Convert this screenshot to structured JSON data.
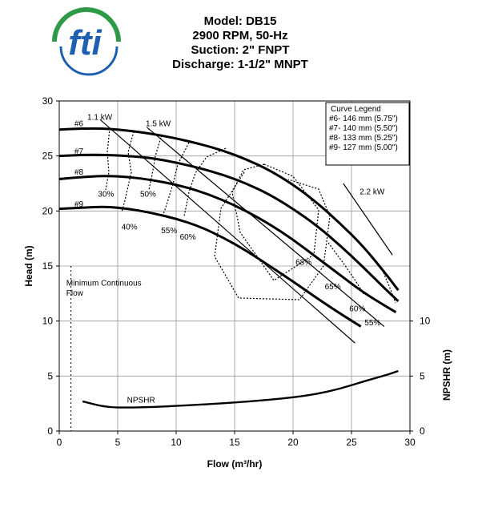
{
  "header": {
    "logo_text": "fti",
    "model": "Model: DB15",
    "speed": "2900 RPM, 50-Hz",
    "suction": "Suction: 2\" FNPT",
    "discharge": "Discharge: 1-1/2\" MNPT"
  },
  "colors": {
    "curve": "#000000",
    "grid": "#9a9a9a",
    "logo_blue": "#1f5fb0",
    "logo_green": "#2e9a48"
  },
  "chart_data": {
    "type": "line",
    "xlabel": "Flow (m³/hr)",
    "ylabel": "Head (m)",
    "y2label": "NPSHR (m)",
    "xlim": [
      0,
      30
    ],
    "ylim": [
      0,
      30
    ],
    "y2lim": [
      0,
      10
    ],
    "xticks": [
      "0",
      "5",
      "10",
      "15",
      "20",
      "25",
      "30"
    ],
    "yticks": [
      "0",
      "5",
      "10",
      "15",
      "20",
      "25",
      "30"
    ],
    "y2ticks": [
      "0",
      "5",
      "10"
    ],
    "grid": true,
    "legend": {
      "title": "Curve Legend",
      "entries": [
        "#6- 146 mm (5.75\")",
        "#7- 140 mm (5.50\")",
        "#8- 133 mm (5.25\")",
        "#9- 127 mm (5.00\")"
      ]
    },
    "series": [
      {
        "name": "#6",
        "x": [
          0,
          2,
          4,
          6,
          8,
          10,
          12,
          14,
          16,
          18,
          20,
          22,
          24,
          26,
          28,
          29
        ],
        "y": [
          27.4,
          27.5,
          27.5,
          27.3,
          27.0,
          26.6,
          26.1,
          25.5,
          24.7,
          23.7,
          22.4,
          20.8,
          18.9,
          16.8,
          14.2,
          12.8
        ]
      },
      {
        "name": "#7",
        "x": [
          0,
          2,
          4,
          6,
          8,
          10,
          12,
          14,
          16,
          18,
          20,
          22,
          24,
          26,
          28,
          29
        ],
        "y": [
          25.0,
          25.1,
          25.1,
          25.0,
          24.8,
          24.4,
          23.9,
          23.3,
          22.5,
          21.5,
          20.2,
          18.7,
          16.9,
          14.9,
          12.8,
          11.8
        ]
      },
      {
        "name": "#8",
        "x": [
          0,
          2,
          4,
          6,
          8,
          10,
          12,
          14,
          16,
          18,
          20,
          22,
          24,
          26,
          28,
          28.8
        ],
        "y": [
          22.9,
          23.1,
          23.2,
          23.1,
          22.8,
          22.4,
          21.8,
          21.0,
          20.0,
          18.8,
          17.4,
          15.8,
          14.2,
          12.6,
          11.3,
          10.8
        ]
      },
      {
        "name": "#9",
        "x": [
          0,
          2,
          4,
          6,
          8,
          10,
          12,
          14,
          16,
          18,
          20,
          22,
          24,
          25.8
        ],
        "y": [
          20.2,
          20.3,
          20.4,
          20.2,
          19.8,
          19.3,
          18.6,
          17.6,
          16.4,
          15.0,
          13.6,
          12.1,
          10.7,
          9.5
        ]
      },
      {
        "name": "NPSHR",
        "axis": "y2",
        "x": [
          2,
          4,
          6,
          8,
          10,
          12,
          14,
          16,
          18,
          20,
          22,
          24,
          26,
          28,
          29
        ],
        "y": [
          0.9,
          0.72,
          0.71,
          0.73,
          0.76,
          0.8,
          0.84,
          0.89,
          0.95,
          1.02,
          1.12,
          1.28,
          1.5,
          1.7,
          1.82
        ]
      }
    ],
    "power_lines": [
      {
        "label": "1.1 kW",
        "x": [
          3.5,
          25.3
        ],
        "y": [
          28.3,
          8.0
        ]
      },
      {
        "label": "1.5 kW",
        "x": [
          7.5,
          27.8
        ],
        "y": [
          27.6,
          9.5
        ]
      },
      {
        "label": "2.2 kW",
        "x": [
          24.3,
          28.5
        ],
        "y": [
          22.5,
          16.0
        ]
      }
    ],
    "efficiency_labels": [
      {
        "label": "30%",
        "x": 4.0,
        "y": 21.3
      },
      {
        "label": "40%",
        "x": 6.0,
        "y": 18.3
      },
      {
        "label": "50%",
        "x": 7.6,
        "y": 21.3
      },
      {
        "label": "55%",
        "x": 9.4,
        "y": 18.0
      },
      {
        "label": "60%",
        "x": 11.0,
        "y": 17.4
      },
      {
        "label": "68%",
        "x": 20.9,
        "y": 15.1
      },
      {
        "label": "65%",
        "x": 23.4,
        "y": 12.9
      },
      {
        "label": "60%",
        "x": 25.5,
        "y": 10.9
      },
      {
        "label": "55%",
        "x": 26.8,
        "y": 9.6
      }
    ],
    "annotations": [
      {
        "text": "Minimum Continuous",
        "x": 0.6,
        "y": 13.2
      },
      {
        "text": "Flow",
        "x": 0.6,
        "y": 12.3
      },
      {
        "text": "2.2 kW",
        "x": 25.7,
        "y": 21.5
      },
      {
        "text": "1.1 kW",
        "x": 2.4,
        "y": 28.3
      },
      {
        "text": "1.5 kW",
        "x": 7.4,
        "y": 27.7
      }
    ],
    "min_flow_x": 1.0
  }
}
